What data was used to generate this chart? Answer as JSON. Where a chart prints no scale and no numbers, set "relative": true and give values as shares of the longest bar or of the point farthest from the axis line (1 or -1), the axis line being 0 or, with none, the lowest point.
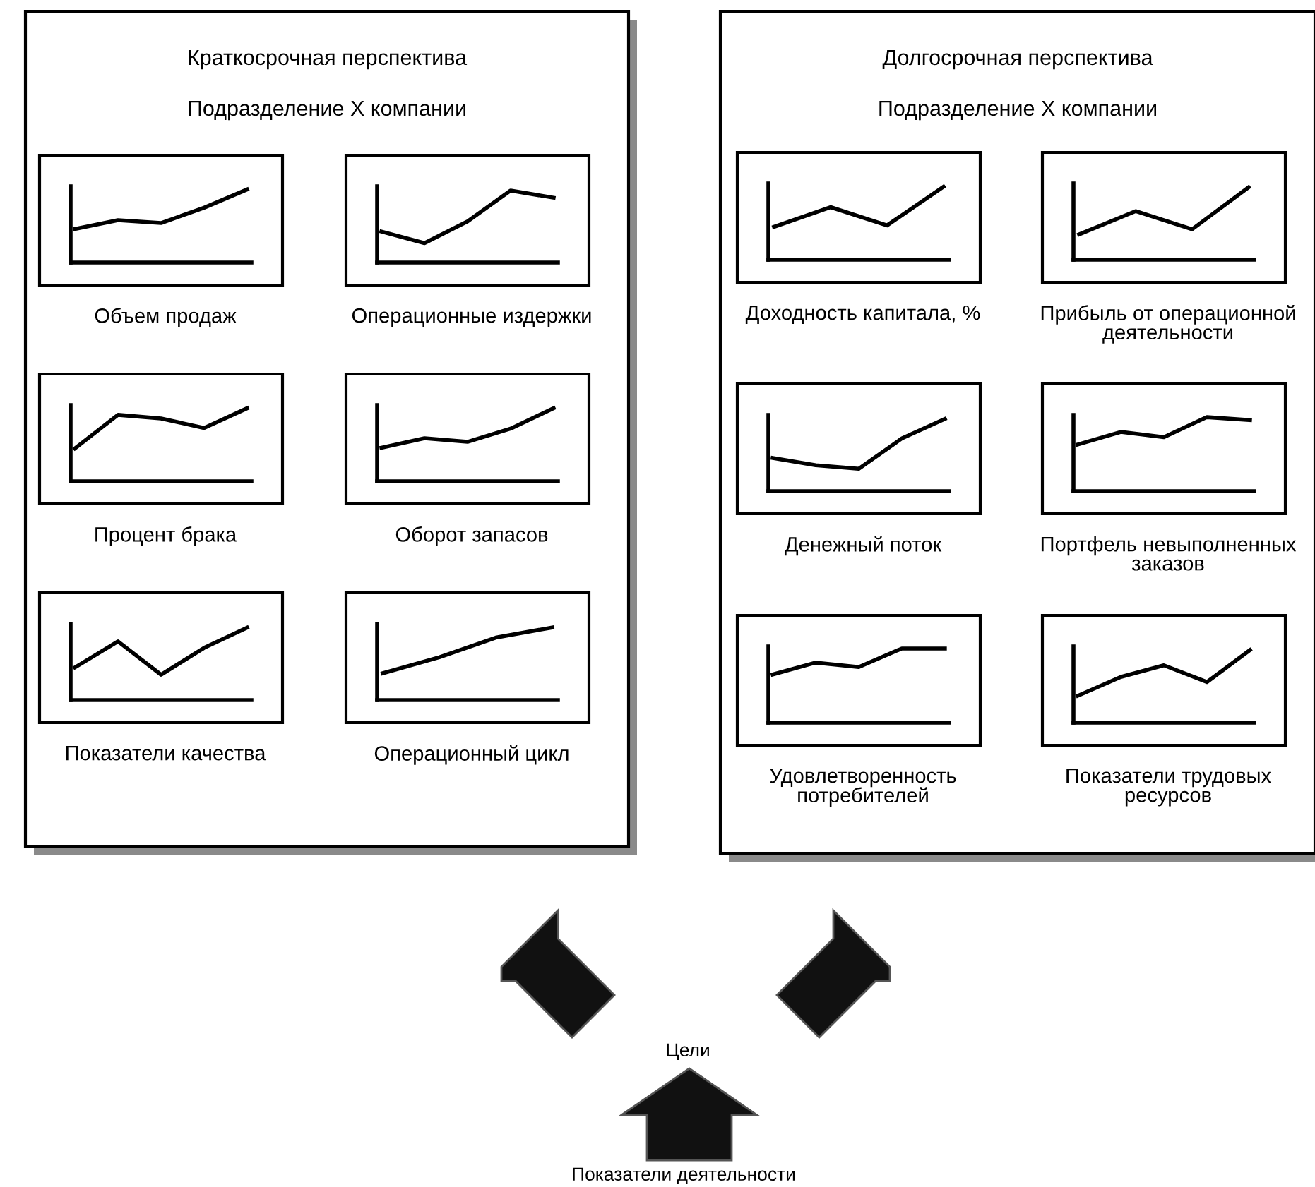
{
  "chart_data": [
    {
      "type": "other",
      "title": "Краткосрочная перспектива",
      "subtitle": "Подразделение X компании"
    },
    {
      "type": "line",
      "relative": true,
      "xlabel": "Объем продаж",
      "categories": [
        null,
        null,
        null,
        null,
        null
      ],
      "series": [
        {
          "color": "#000000",
          "values": [
            0.46,
            0.58,
            0.54,
            0.75,
            1
          ]
        }
      ]
    },
    {
      "type": "line",
      "relative": true,
      "xlabel": "Операционные издержки",
      "categories": [
        null,
        null,
        null,
        null,
        null
      ],
      "series": [
        {
          "color": "#000000",
          "values": [
            0.43,
            0.27,
            0.57,
            1,
            0.9
          ]
        }
      ]
    },
    {
      "type": "line",
      "relative": true,
      "xlabel": "Процент брака",
      "categories": [
        null,
        null,
        null,
        null,
        null
      ],
      "series": [
        {
          "color": "#000000",
          "values": [
            0.45,
            0.91,
            0.86,
            0.73,
            1
          ]
        }
      ]
    },
    {
      "type": "line",
      "relative": true,
      "xlabel": "Оборот запасов",
      "categories": [
        null,
        null,
        null,
        null,
        null
      ],
      "series": [
        {
          "color": "#000000",
          "values": [
            0.46,
            0.59,
            0.54,
            0.72,
            1
          ]
        }
      ]
    },
    {
      "type": "line",
      "relative": true,
      "xlabel": "Показатели качества",
      "categories": [
        null,
        null,
        null,
        null,
        null
      ],
      "series": [
        {
          "color": "#000000",
          "values": [
            0.45,
            0.81,
            0.35,
            0.72,
            1
          ]
        }
      ]
    },
    {
      "type": "line",
      "relative": true,
      "xlabel": "Операционный цикл",
      "categories": [
        null,
        null,
        null,
        null
      ],
      "series": [
        {
          "color": "#000000",
          "values": [
            0.37,
            0.59,
            0.86,
            1
          ]
        }
      ]
    },
    {
      "type": "other",
      "title": "Долгосрочная перспектива",
      "subtitle": "Подразделение X компании"
    },
    {
      "type": "line",
      "relative": true,
      "xlabel": "Доходность капитала, %",
      "categories": [
        null,
        null,
        null,
        null
      ],
      "series": [
        {
          "color": "#000000",
          "values": [
            0.45,
            0.72,
            0.47,
            1
          ]
        }
      ]
    },
    {
      "type": "line",
      "relative": true,
      "xlabel": "Прибыль от операционной\nдеятельности",
      "categories": [
        null,
        null,
        null,
        null
      ],
      "series": [
        {
          "color": "#000000",
          "values": [
            0.35,
            0.67,
            0.42,
            1
          ]
        }
      ]
    },
    {
      "type": "line",
      "relative": true,
      "xlabel": "Денежный поток",
      "categories": [
        null,
        null,
        null,
        null,
        null
      ],
      "series": [
        {
          "color": "#000000",
          "values": [
            0.46,
            0.36,
            0.31,
            0.73,
            1
          ]
        }
      ]
    },
    {
      "type": "line",
      "relative": true,
      "xlabel": "Портфель невыполненных\nзаказов",
      "categories": [
        null,
        null,
        null,
        null,
        null
      ],
      "series": [
        {
          "color": "#000000",
          "values": [
            0.63,
            0.8,
            0.73,
            1,
            0.96
          ]
        }
      ]
    },
    {
      "type": "line",
      "relative": true,
      "xlabel": "Удовлетворенность\nпотребителей",
      "categories": [
        null,
        null,
        null,
        null,
        null
      ],
      "series": [
        {
          "color": "#000000",
          "values": [
            0.65,
            0.81,
            0.75,
            1,
            1
          ]
        }
      ]
    },
    {
      "type": "line",
      "relative": true,
      "xlabel": "Показатели трудовых\nресурсов",
      "categories": [
        null,
        null,
        null,
        null,
        null
      ],
      "series": [
        {
          "color": "#000000",
          "values": [
            0.37,
            0.63,
            0.79,
            0.56,
            1
          ]
        }
      ]
    },
    {
      "type": "other",
      "annotations": [
        "Цели",
        "Показатели деятельности"
      ]
    }
  ]
}
